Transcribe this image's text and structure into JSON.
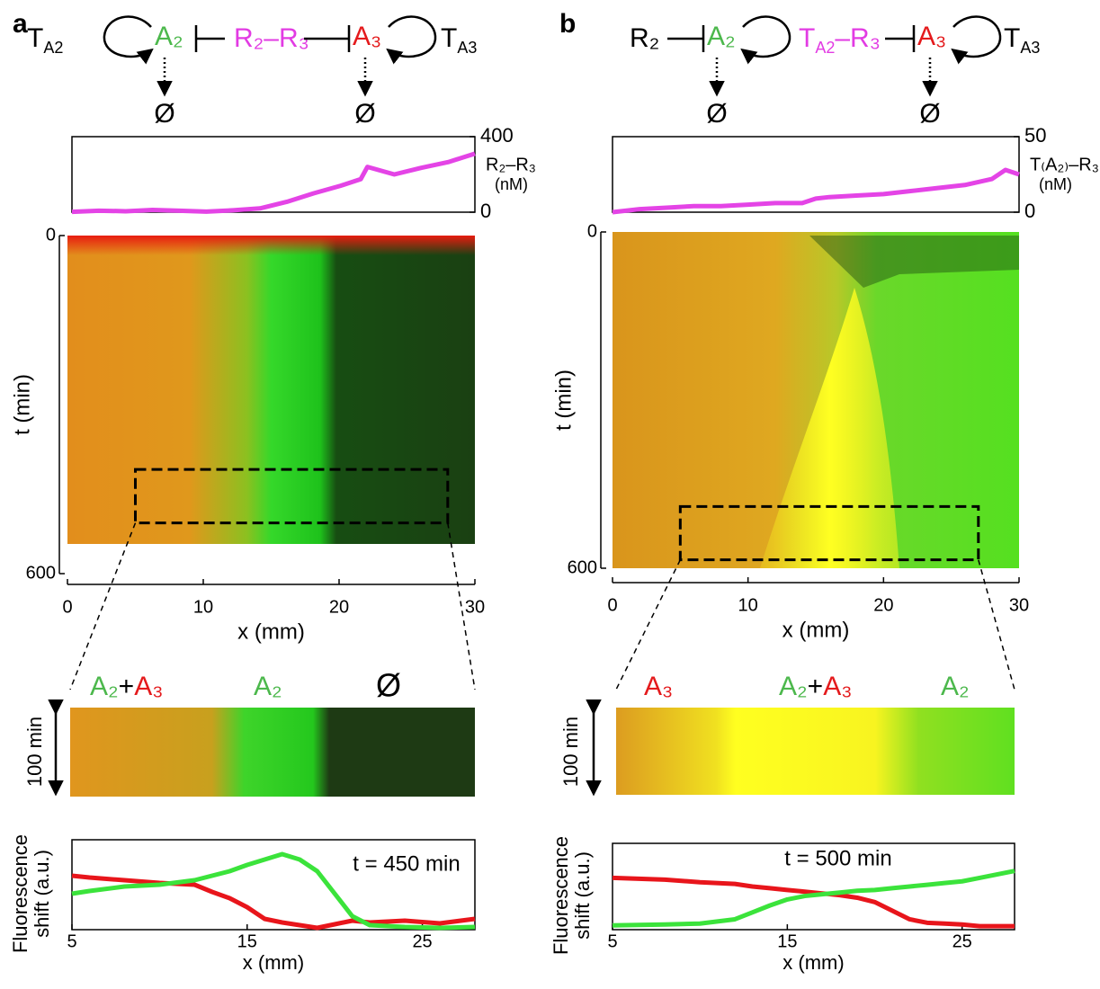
{
  "panels": [
    {
      "label": "a",
      "diagram": {
        "left_template": {
          "text": "T",
          "sub": "A2"
        },
        "node1": "A₂",
        "repressor": "R₂–R₃",
        "node2": "A₃",
        "right_template": {
          "text": "T",
          "sub": "A3"
        },
        "sinks": [
          "Ø",
          "Ø"
        ]
      },
      "zoom_labels": {
        "left": [
          "A₂",
          "+",
          "A₃"
        ],
        "middle": [
          "A₂"
        ],
        "right": [
          "Ø"
        ]
      },
      "duration_label": "100 min"
    },
    {
      "label": "b",
      "diagram": {
        "left_input": "R₂",
        "node1": "A₂",
        "repressor": {
          "text": "T",
          "sub": "A2",
          "rest": "–R₃"
        },
        "node2": "A₃",
        "right_template": {
          "text": "T",
          "sub": "A3"
        },
        "sinks": [
          "Ø",
          "Ø"
        ]
      },
      "zoom_labels": {
        "left": [
          "A₃"
        ],
        "middle": [
          "A₂",
          "+",
          "A₃"
        ],
        "right": [
          "A₂"
        ]
      },
      "duration_label": "100 min"
    }
  ],
  "chart_data": [
    {
      "type": "line",
      "y_label": [
        "R₂–R₃",
        "(nM)"
      ],
      "y_axis_side": "right",
      "xlim": [
        0,
        30
      ],
      "ylim": [
        0,
        400
      ],
      "yticks": [
        0,
        400
      ],
      "x": [
        0,
        2,
        4,
        6,
        8,
        10,
        12,
        14,
        16,
        18,
        20,
        21.5,
        22,
        24,
        26,
        28,
        30
      ],
      "series": [
        {
          "color": "#e444e6",
          "values": [
            2,
            8,
            5,
            12,
            8,
            3,
            10,
            20,
            55,
            100,
            140,
            175,
            240,
            200,
            235,
            265,
            310
          ]
        }
      ]
    },
    {
      "type": "heatmap",
      "x_label": "x (mm)",
      "y_label": "t (min)",
      "xlim": [
        0,
        30
      ],
      "ylim": [
        0,
        600
      ],
      "xticks": [
        0,
        10,
        20,
        30
      ],
      "yticks": [
        0,
        600
      ],
      "zoom_x": [
        5,
        28
      ],
      "zoom_t": [
        415,
        510
      ]
    },
    {
      "type": "line",
      "x_label": "x (mm)",
      "y_label": [
        "Fluorescence",
        "shift (a.u.)"
      ],
      "annotation": "t = 450 min",
      "xlim": [
        5,
        28
      ],
      "ylim": [
        0,
        1
      ],
      "xticks": [
        5,
        15,
        25
      ],
      "x": [
        5,
        6,
        8,
        10,
        12,
        13,
        14,
        15,
        16,
        17,
        18,
        19,
        20,
        21,
        22,
        24,
        26,
        28
      ],
      "series": [
        {
          "color": "#e8151b",
          "values": [
            0.6,
            0.58,
            0.55,
            0.52,
            0.5,
            0.42,
            0.35,
            0.25,
            0.12,
            0.08,
            0.05,
            0.02,
            0.06,
            0.1,
            0.08,
            0.1,
            0.07,
            0.12
          ]
        },
        {
          "color": "#3be33b",
          "values": [
            0.4,
            0.43,
            0.48,
            0.5,
            0.55,
            0.6,
            0.65,
            0.72,
            0.78,
            0.84,
            0.78,
            0.65,
            0.4,
            0.15,
            0.05,
            0.03,
            0.02,
            0.03
          ]
        }
      ]
    },
    {
      "type": "line",
      "y_label": [
        "T₍A₂₎–R₃",
        "(nM)"
      ],
      "y_axis_side": "right",
      "xlim": [
        0,
        30
      ],
      "ylim": [
        0,
        50
      ],
      "yticks": [
        0,
        50
      ],
      "x": [
        0,
        2,
        4,
        6,
        8,
        10,
        12,
        14,
        15,
        16,
        18,
        20,
        22,
        24,
        26,
        28,
        29,
        30
      ],
      "series": [
        {
          "color": "#e444e6",
          "values": [
            0,
            2,
            3,
            4,
            4,
            5,
            6,
            6,
            9,
            10,
            11,
            12,
            14,
            16,
            18,
            22,
            28,
            25
          ]
        }
      ]
    },
    {
      "type": "heatmap",
      "x_label": "x (mm)",
      "y_label": "t (min)",
      "xlim": [
        0,
        30
      ],
      "ylim": [
        0,
        600
      ],
      "xticks": [
        0,
        10,
        20,
        30
      ],
      "yticks": [
        0,
        600
      ],
      "zoom_x": [
        5,
        27
      ],
      "zoom_t": [
        490,
        585
      ]
    },
    {
      "type": "line",
      "x_label": "x (mm)",
      "y_label": [
        "Fluorescence",
        "shift (a.u.)"
      ],
      "annotation": "t = 500 min",
      "xlim": [
        5,
        28
      ],
      "ylim": [
        0,
        1
      ],
      "xticks": [
        5,
        15,
        25
      ],
      "x": [
        5,
        8,
        10,
        12,
        13,
        14,
        15,
        16,
        17,
        18,
        19,
        20,
        21,
        22,
        23,
        24,
        25,
        26,
        28
      ],
      "series": [
        {
          "color": "#e8151b",
          "values": [
            0.6,
            0.58,
            0.55,
            0.53,
            0.5,
            0.48,
            0.46,
            0.44,
            0.42,
            0.4,
            0.37,
            0.32,
            0.22,
            0.12,
            0.08,
            0.07,
            0.06,
            0.04,
            0.04
          ]
        },
        {
          "color": "#3be33b",
          "values": [
            0.05,
            0.06,
            0.07,
            0.12,
            0.2,
            0.28,
            0.35,
            0.39,
            0.41,
            0.43,
            0.45,
            0.46,
            0.48,
            0.5,
            0.52,
            0.54,
            0.56,
            0.6,
            0.68
          ]
        }
      ]
    }
  ]
}
